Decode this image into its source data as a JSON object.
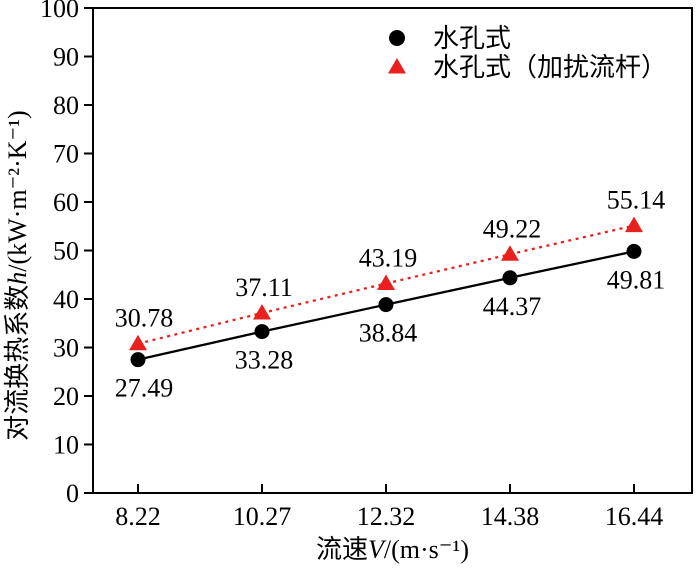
{
  "figure": {
    "background": "#ffffff"
  },
  "chart_data": {
    "type": "line",
    "title": "",
    "xlabel_prefix": "流速",
    "xlabel_var": "V",
    "xlabel_unit": "/(m·s⁻¹)",
    "ylabel_prefix": "对流换热系数",
    "ylabel_var": "h",
    "ylabel_unit": "/(kW·m⁻²·K⁻¹)",
    "categories": [
      "8.22",
      "10.27",
      "12.32",
      "14.38",
      "16.44"
    ],
    "x_values": [
      8.22,
      10.27,
      12.32,
      14.38,
      16.44
    ],
    "ylim": [
      0,
      100
    ],
    "ytick_step": 10,
    "ytick_labels": [
      "0",
      "10",
      "20",
      "30",
      "40",
      "50",
      "60",
      "70",
      "80",
      "90",
      "100"
    ],
    "grid": false,
    "frame": true,
    "axis_color": "#000000",
    "legend_position": "top-center",
    "series": [
      {
        "name": "水孔式",
        "values": [
          27.49,
          33.28,
          38.84,
          44.37,
          49.81
        ],
        "point_labels": [
          "27.49",
          "33.28",
          "38.84",
          "44.37",
          "49.81"
        ],
        "color": "#000000",
        "marker": "circle",
        "line_style": "solid",
        "label_position": "below"
      },
      {
        "name": "水孔式（加扰流杆）",
        "values": [
          30.78,
          37.11,
          43.19,
          49.22,
          55.14
        ],
        "point_labels": [
          "30.78",
          "37.11",
          "43.19",
          "49.22",
          "55.14"
        ],
        "color": "#e8201e",
        "marker": "triangle",
        "line_style": "dotted",
        "label_position": "above"
      }
    ]
  }
}
